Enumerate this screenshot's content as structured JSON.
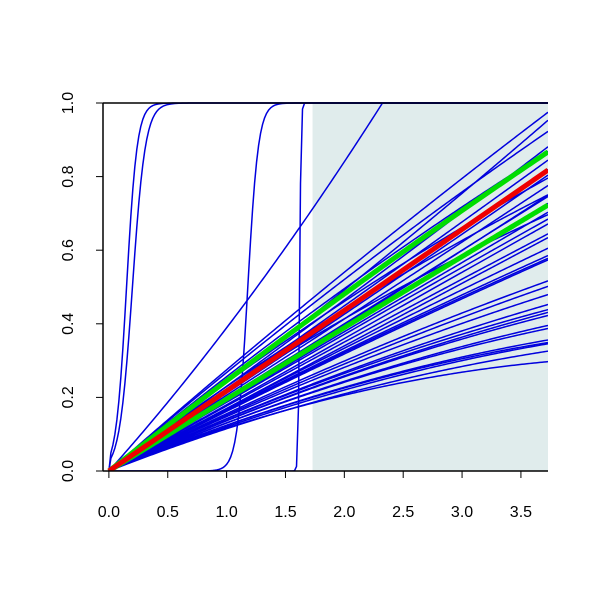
{
  "chart_data": {
    "type": "line",
    "title": "",
    "xlabel": "",
    "ylabel": "",
    "xlim": [
      -0.05,
      3.73
    ],
    "ylim": [
      0,
      1.0
    ],
    "grid": false,
    "legend": "none",
    "shaded_region": {
      "x_from": 1.73,
      "x_to": 3.73,
      "y_from": 0,
      "y_to": 1.0,
      "color": "#e0ecec"
    },
    "x_ticks": [
      "0.0",
      "0.5",
      "1.0",
      "1.5",
      "2.0",
      "2.5",
      "3.0",
      "3.5"
    ],
    "y_ticks": [
      "0.0",
      "0.2",
      "0.4",
      "0.6",
      "0.8",
      "1.0"
    ],
    "series": [
      {
        "kind": "sigmoid",
        "color": "#0000dd",
        "width": 1.5,
        "midpoint": 0.15,
        "scale": 0.045
      },
      {
        "kind": "sigmoid",
        "color": "#0000dd",
        "width": 1.5,
        "midpoint": 0.2,
        "scale": 0.055
      },
      {
        "kind": "sigmoid",
        "color": "#0000dd",
        "width": 1.5,
        "midpoint": 1.18,
        "scale": 0.045
      },
      {
        "kind": "sigmoid",
        "color": "#0000dd",
        "width": 1.5,
        "midpoint": 1.62,
        "scale": 0.006
      },
      {
        "kind": "poly",
        "color": "#0000dd",
        "width": 1.5,
        "a": 0.358,
        "b": 0.0311,
        "knee_x": 1.6,
        "knee_y": 0.43
      },
      {
        "kind": "poly",
        "color": "#0000dd",
        "width": 1.5,
        "a": 0.28,
        "b": -0.005
      },
      {
        "kind": "poly",
        "color": "#0000dd",
        "width": 1.5,
        "a": 0.275,
        "b": -0.0074
      },
      {
        "kind": "poly",
        "color": "#0000dd",
        "width": 1.5,
        "a": 0.265,
        "b": -0.0086
      },
      {
        "kind": "poly",
        "color": "#0000dd",
        "width": 1.5,
        "a": 0.25,
        "b": -0.0098
      },
      {
        "kind": "poly",
        "color": "#0000dd",
        "width": 1.5,
        "a": 0.24,
        "b": -0.0104
      },
      {
        "kind": "poly",
        "color": "#0000dd",
        "width": 1.5,
        "a": 0.23,
        "b": -0.0116
      },
      {
        "kind": "poly",
        "color": "#0000dd",
        "width": 1.5,
        "a": 0.195,
        "b": 0.0016
      },
      {
        "kind": "poly",
        "color": "#0000dd",
        "width": 1.5,
        "a": 0.19,
        "b": -0.0004
      },
      {
        "kind": "poly",
        "color": "#0000dd",
        "width": 1.5,
        "a": 0.18,
        "b": 0.0
      },
      {
        "kind": "poly",
        "color": "#0000dd",
        "width": 1.5,
        "a": 0.17,
        "b": 0.0
      },
      {
        "kind": "poly",
        "color": "#0000dd",
        "width": 1.5,
        "a": 0.168,
        "b": -0.0035
      },
      {
        "kind": "poly",
        "color": "#0000dd",
        "width": 1.5,
        "a": 0.162,
        "b": -0.0063
      },
      {
        "kind": "poly",
        "color": "#0000dd",
        "width": 1.5,
        "a": 0.158,
        "b": -0.0063
      },
      {
        "kind": "poly",
        "color": "#0000dd",
        "width": 1.5,
        "a": 0.155,
        "b": -0.0071
      },
      {
        "kind": "poly",
        "color": "#0000dd",
        "width": 1.5,
        "a": 0.15,
        "b": -0.0077
      },
      {
        "kind": "poly",
        "color": "#0000dd",
        "width": 1.5,
        "a": 0.15,
        "b": -0.0087
      },
      {
        "kind": "poly",
        "color": "#0000dd",
        "width": 1.5,
        "a": 0.145,
        "b": -0.0079
      },
      {
        "kind": "poly",
        "color": "#0000dd",
        "width": 1.5,
        "a": 0.145,
        "b": -0.0085
      },
      {
        "kind": "poly",
        "color": "#0000dd",
        "width": 1.5,
        "a": 0.14,
        "b": -0.0091
      },
      {
        "kind": "poly",
        "color": "#0000dd",
        "width": 1.5,
        "a": 0.14,
        "b": -0.0097
      },
      {
        "kind": "poly",
        "color": "#0000dd",
        "width": 1.5,
        "a": 0.135,
        "b": -0.0106
      },
      {
        "kind": "poly",
        "color": "#0000dd",
        "width": 1.5,
        "a": 0.135,
        "b": -0.0111
      },
      {
        "kind": "poly",
        "color": "#0000dd",
        "width": 1.5,
        "a": 0.13,
        "b": -0.01
      },
      {
        "kind": "poly",
        "color": "#0000dd",
        "width": 1.5,
        "a": 0.125,
        "b": -0.0101
      },
      {
        "kind": "poly",
        "color": "#0000dd",
        "width": 1.5,
        "a": 0.13,
        "b": -0.0135
      },
      {
        "kind": "poly",
        "color": "#0000dd",
        "width": 1.5,
        "a": 0.17,
        "b": -0.0035
      },
      {
        "kind": "poly",
        "color": "#0000dd",
        "width": 1.5,
        "a": 0.235,
        "b": 0.0055
      },
      {
        "kind": "poly",
        "color": "#0000dd",
        "width": 1.5,
        "a": 0.228,
        "b": 0.0022
      },
      {
        "kind": "poly",
        "color": "#0000dd",
        "width": 1.5,
        "a": 0.222,
        "b": 0.0012
      },
      {
        "kind": "poly",
        "color": "#0000dd",
        "width": 1.5,
        "a": 0.216,
        "b": 0.001
      },
      {
        "kind": "poly",
        "color": "#0000dd",
        "width": 1.5,
        "a": 0.21,
        "b": 0.0015
      },
      {
        "kind": "poly",
        "color": "#0000dd",
        "width": 1.5,
        "a": 0.205,
        "b": 0.0008
      },
      {
        "kind": "poly",
        "color": "#0000dd",
        "width": 1.5,
        "a": 0.2,
        "b": 0.0
      },
      {
        "kind": "poly",
        "color": "#0000dd",
        "width": 1.5,
        "a": 0.195,
        "b": 0.0
      },
      {
        "kind": "poly",
        "color": "#0000dd",
        "width": 1.5,
        "a": 0.188,
        "b": -0.0012
      },
      {
        "kind": "poly",
        "color": "#0000dd",
        "width": 1.5,
        "a": 0.178,
        "b": -0.0014
      },
      {
        "kind": "poly",
        "color": "#0000dd",
        "width": 1.5,
        "a": 0.172,
        "b": -0.0026
      },
      {
        "kind": "poly",
        "color": "#0000dd",
        "width": 1.5,
        "a": 0.165,
        "b": -0.003
      },
      {
        "kind": "poly",
        "color": "#00dd00",
        "width": 5,
        "a": 0.25,
        "b": -0.0047
      },
      {
        "kind": "poly",
        "color": "#00dd00",
        "width": 5,
        "a": 0.196,
        "b": -0.0006
      },
      {
        "kind": "poly",
        "color": "#ee0000",
        "width": 5,
        "a": 0.217,
        "b": 0.0006
      }
    ]
  }
}
